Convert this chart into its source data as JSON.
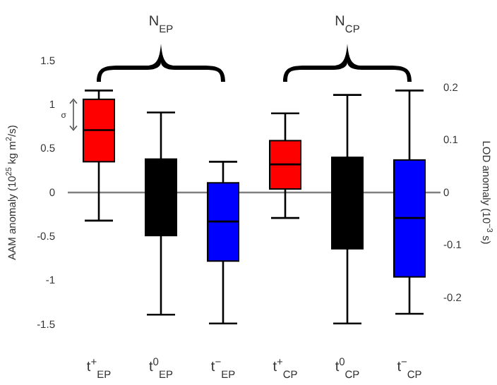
{
  "chart_data": {
    "type": "box",
    "categories": [
      "t$^{+}$$_{EP}$",
      "t$^{0}$$_{EP}$",
      "t$^{−}$$_{EP}$",
      "t$^{+}$$_{CP}$",
      "t$^{0}$$_{CP}$",
      "t$^{−}$$_{CP}$"
    ],
    "colors": [
      "#ff0000",
      "#000000",
      "#0000ff",
      "#ff0000",
      "#000000",
      "#0000ff"
    ],
    "boxes": [
      {
        "low": -0.32,
        "q1": 0.35,
        "median": 0.71,
        "q3": 1.06,
        "high": 1.16
      },
      {
        "low": -1.39,
        "q1": -0.49,
        "median": 0,
        "q3": 0.38,
        "high": 0.91
      },
      {
        "low": -1.49,
        "q1": -0.78,
        "median": -0.33,
        "q3": 0.11,
        "high": 0.35
      },
      {
        "low": -0.29,
        "q1": 0.04,
        "median": 0.32,
        "q3": 0.59,
        "high": 0.9
      },
      {
        "low": -1.49,
        "q1": -0.64,
        "median": 0,
        "q3": 0.4,
        "high": 1.11
      },
      {
        "low": -1.38,
        "q1": -0.96,
        "median": -0.29,
        "q3": 0.37,
        "high": 1.16
      }
    ],
    "ylabel": "AAM anomaly (10$^{25}$ kg m$^{2}$/s)",
    "y2label": "LOD anomaly (10$^{−3}$ s)",
    "ylim": [
      -1.5,
      1.5
    ],
    "yticks": [
      -1.5,
      -1,
      -0.5,
      0,
      0.5,
      1,
      1.5
    ],
    "y2lim": [
      -0.2,
      0.2
    ],
    "y2ticks": [
      -0.2,
      -0.1,
      0,
      0.1,
      0.2
    ],
    "annotations": [
      "σ",
      "N$_{EP}$",
      "N$_{CP}$"
    ]
  }
}
